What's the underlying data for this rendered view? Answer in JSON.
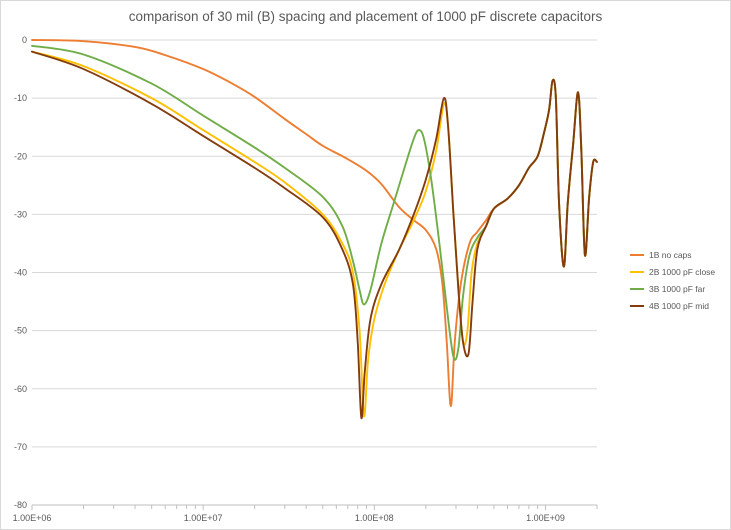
{
  "chart_data": {
    "type": "line",
    "title": "comparison of 30 mil (B) spacing and placement of 1000 pF discrete capacitors",
    "xscale": "log",
    "xlim": [
      1000000,
      2000000000
    ],
    "ylim": [
      -80,
      0
    ],
    "x_ticks": [
      1000000,
      10000000,
      100000000,
      1000000000
    ],
    "x_tick_labels": [
      "1.00E+06",
      "1.00E+07",
      "1.00E+08",
      "1.00E+09"
    ],
    "y_ticks": [
      0,
      -10,
      -20,
      -30,
      -40,
      -50,
      -60,
      -70,
      -80
    ],
    "y_tick_labels": [
      "0",
      "-10",
      "-20",
      "-30",
      "-40",
      "-50",
      "-60",
      "-70",
      "-80"
    ],
    "grid": "horizontal",
    "legend_position": "right",
    "series": [
      {
        "name": "1B no caps",
        "color": "#ed7d31",
        "points": [
          [
            1000000,
            0
          ],
          [
            2000000,
            -0.2
          ],
          [
            4000000,
            -1.2
          ],
          [
            6000000,
            -2.6
          ],
          [
            10000000,
            -5
          ],
          [
            15000000,
            -7.6
          ],
          [
            20000000,
            -9.8
          ],
          [
            30000000,
            -13.6
          ],
          [
            40000000,
            -16.2
          ],
          [
            50000000,
            -18.2
          ],
          [
            70000000,
            -20.5
          ],
          [
            90000000,
            -22.5
          ],
          [
            110000000,
            -24.8
          ],
          [
            140000000,
            -28.8
          ],
          [
            170000000,
            -31
          ],
          [
            200000000,
            -32.7
          ],
          [
            230000000,
            -36
          ],
          [
            250000000,
            -42
          ],
          [
            265000000,
            -52
          ],
          [
            280000000,
            -63
          ],
          [
            295000000,
            -52
          ],
          [
            320000000,
            -42
          ],
          [
            360000000,
            -35
          ],
          [
            400000000,
            -33
          ],
          [
            450000000,
            -31
          ],
          [
            500000000,
            -29
          ],
          [
            600000000,
            -27.3
          ],
          [
            700000000,
            -25
          ],
          [
            800000000,
            -22
          ],
          [
            900000000,
            -20
          ],
          [
            980000000,
            -16
          ],
          [
            1050000000,
            -12
          ],
          [
            1100000000,
            -7
          ],
          [
            1150000000,
            -10
          ],
          [
            1200000000,
            -28
          ],
          [
            1280000000,
            -39
          ],
          [
            1350000000,
            -28
          ],
          [
            1450000000,
            -18
          ],
          [
            1550000000,
            -9
          ],
          [
            1620000000,
            -19
          ],
          [
            1700000000,
            -37
          ],
          [
            1800000000,
            -27
          ],
          [
            1900000000,
            -21
          ],
          [
            2000000000,
            -21
          ]
        ]
      },
      {
        "name": "2B 1000 pF close",
        "color": "#ffc000",
        "points": [
          [
            1000000,
            -2
          ],
          [
            2000000,
            -4.5
          ],
          [
            5000000,
            -10
          ],
          [
            10000000,
            -15.5
          ],
          [
            20000000,
            -21
          ],
          [
            30000000,
            -24.5
          ],
          [
            50000000,
            -30
          ],
          [
            65000000,
            -35
          ],
          [
            75000000,
            -40
          ],
          [
            82000000,
            -50
          ],
          [
            87000000,
            -64.7
          ],
          [
            92000000,
            -55
          ],
          [
            100000000,
            -48
          ],
          [
            115000000,
            -42
          ],
          [
            140000000,
            -36
          ],
          [
            170000000,
            -31
          ],
          [
            200000000,
            -26
          ],
          [
            230000000,
            -19
          ],
          [
            255000000,
            -11
          ],
          [
            270000000,
            -15
          ],
          [
            290000000,
            -30
          ],
          [
            310000000,
            -43
          ],
          [
            330000000,
            -52
          ],
          [
            350000000,
            -50
          ],
          [
            370000000,
            -40
          ],
          [
            400000000,
            -35
          ],
          [
            450000000,
            -32
          ],
          [
            500000000,
            -29
          ],
          [
            600000000,
            -27.3
          ],
          [
            700000000,
            -25
          ],
          [
            800000000,
            -22
          ],
          [
            900000000,
            -20
          ],
          [
            980000000,
            -16
          ],
          [
            1050000000,
            -12
          ],
          [
            1100000000,
            -7
          ],
          [
            1150000000,
            -10
          ],
          [
            1200000000,
            -28
          ],
          [
            1280000000,
            -39
          ],
          [
            1350000000,
            -28
          ],
          [
            1450000000,
            -18
          ],
          [
            1550000000,
            -9
          ],
          [
            1620000000,
            -19
          ],
          [
            1700000000,
            -37
          ],
          [
            1800000000,
            -27
          ],
          [
            1900000000,
            -21
          ],
          [
            2000000000,
            -21
          ]
        ]
      },
      {
        "name": "3B 1000 pF far",
        "color": "#70ad47",
        "points": [
          [
            1000000,
            -1
          ],
          [
            2000000,
            -2.5
          ],
          [
            5000000,
            -7.5
          ],
          [
            10000000,
            -13
          ],
          [
            20000000,
            -18.5
          ],
          [
            30000000,
            -22
          ],
          [
            50000000,
            -27
          ],
          [
            65000000,
            -32
          ],
          [
            75000000,
            -38
          ],
          [
            82000000,
            -43
          ],
          [
            87000000,
            -45.5
          ],
          [
            95000000,
            -43
          ],
          [
            110000000,
            -35
          ],
          [
            130000000,
            -28
          ],
          [
            150000000,
            -22
          ],
          [
            170000000,
            -17
          ],
          [
            182000000,
            -15.5
          ],
          [
            195000000,
            -17
          ],
          [
            215000000,
            -24
          ],
          [
            240000000,
            -35
          ],
          [
            265000000,
            -46
          ],
          [
            290000000,
            -54.5
          ],
          [
            310000000,
            -53
          ],
          [
            330000000,
            -44
          ],
          [
            360000000,
            -37
          ],
          [
            400000000,
            -34
          ],
          [
            450000000,
            -32
          ],
          [
            500000000,
            -29
          ],
          [
            600000000,
            -27.3
          ],
          [
            700000000,
            -25
          ],
          [
            800000000,
            -22
          ],
          [
            900000000,
            -20
          ],
          [
            980000000,
            -16
          ],
          [
            1050000000,
            -12
          ],
          [
            1100000000,
            -7
          ],
          [
            1150000000,
            -10
          ],
          [
            1200000000,
            -28
          ],
          [
            1280000000,
            -39
          ],
          [
            1350000000,
            -28
          ],
          [
            1450000000,
            -18
          ],
          [
            1550000000,
            -9
          ],
          [
            1620000000,
            -19
          ],
          [
            1700000000,
            -37
          ],
          [
            1800000000,
            -27
          ],
          [
            1900000000,
            -21
          ],
          [
            2000000000,
            -21
          ]
        ]
      },
      {
        "name": "4B 1000 pF mid",
        "color": "#843c0c",
        "points": [
          [
            1000000,
            -2
          ],
          [
            2000000,
            -5
          ],
          [
            5000000,
            -11
          ],
          [
            10000000,
            -16.5
          ],
          [
            20000000,
            -22
          ],
          [
            30000000,
            -25.5
          ],
          [
            50000000,
            -30.5
          ],
          [
            65000000,
            -36
          ],
          [
            75000000,
            -42
          ],
          [
            80000000,
            -52
          ],
          [
            84000000,
            -65
          ],
          [
            88000000,
            -57
          ],
          [
            95000000,
            -48
          ],
          [
            110000000,
            -42
          ],
          [
            140000000,
            -36
          ],
          [
            170000000,
            -30
          ],
          [
            200000000,
            -24
          ],
          [
            230000000,
            -17
          ],
          [
            255000000,
            -10
          ],
          [
            270000000,
            -15
          ],
          [
            290000000,
            -30
          ],
          [
            310000000,
            -43
          ],
          [
            330000000,
            -52
          ],
          [
            355000000,
            -54
          ],
          [
            375000000,
            -45
          ],
          [
            400000000,
            -36
          ],
          [
            450000000,
            -32
          ],
          [
            500000000,
            -29
          ],
          [
            600000000,
            -27.3
          ],
          [
            700000000,
            -25
          ],
          [
            800000000,
            -22
          ],
          [
            900000000,
            -20
          ],
          [
            980000000,
            -16
          ],
          [
            1050000000,
            -12
          ],
          [
            1100000000,
            -7
          ],
          [
            1150000000,
            -10
          ],
          [
            1200000000,
            -28
          ],
          [
            1280000000,
            -39
          ],
          [
            1350000000,
            -28
          ],
          [
            1450000000,
            -18
          ],
          [
            1550000000,
            -9
          ],
          [
            1620000000,
            -19
          ],
          [
            1700000000,
            -37
          ],
          [
            1800000000,
            -27
          ],
          [
            1900000000,
            -21
          ],
          [
            2000000000,
            -21
          ]
        ]
      }
    ]
  }
}
